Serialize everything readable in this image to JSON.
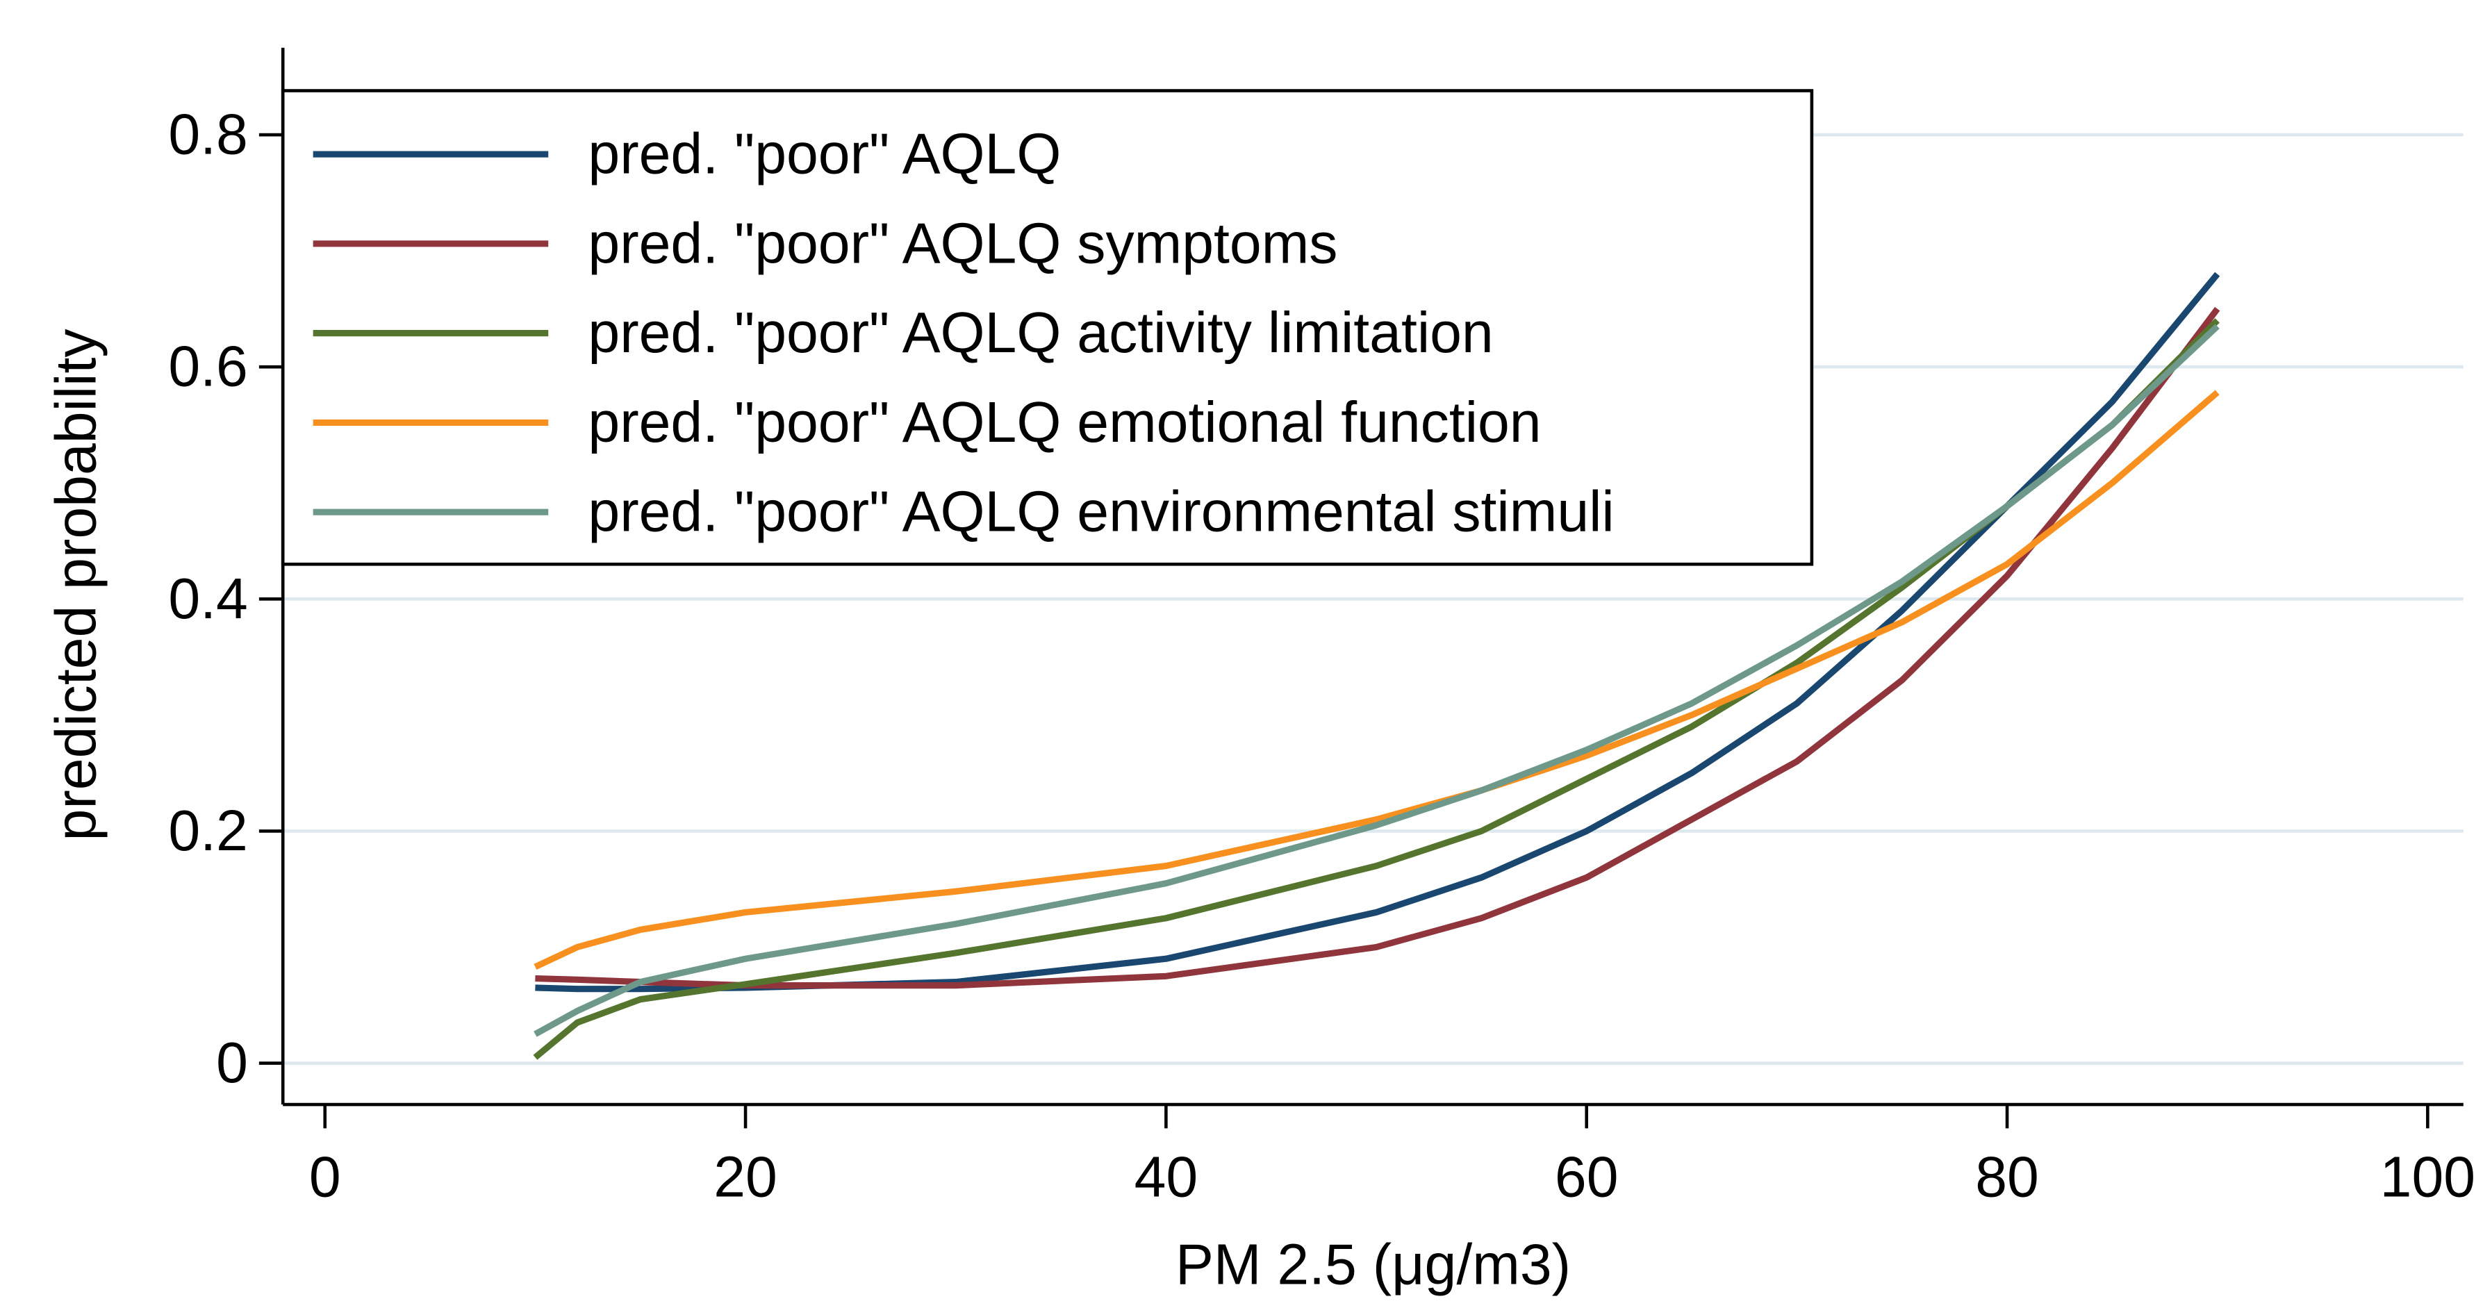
{
  "chart_data": {
    "type": "line",
    "x_label": "PM 2.5 (μg/m3)",
    "y_label": "predicted probability",
    "x": [
      10,
      12,
      15,
      20,
      30,
      40,
      50,
      55,
      60,
      65,
      70,
      75,
      80,
      85,
      90
    ],
    "series": [
      {
        "name": "pred. \"poor\" AQLQ",
        "color": "#1a476f",
        "values": [
          0.065,
          0.064,
          0.064,
          0.065,
          0.07,
          0.09,
          0.13,
          0.16,
          0.2,
          0.25,
          0.31,
          0.39,
          0.48,
          0.57,
          0.68
        ]
      },
      {
        "name": "pred. \"poor\" AQLQ symptoms",
        "color": "#90353b",
        "values": [
          0.073,
          0.072,
          0.07,
          0.067,
          0.067,
          0.075,
          0.1,
          0.125,
          0.16,
          0.21,
          0.26,
          0.33,
          0.42,
          0.53,
          0.65
        ]
      },
      {
        "name": "pred. \"poor\" AQLQ activity limitation",
        "color": "#55752f",
        "values": [
          0.005,
          0.035,
          0.055,
          0.068,
          0.095,
          0.125,
          0.17,
          0.2,
          0.245,
          0.29,
          0.345,
          0.41,
          0.48,
          0.55,
          0.64
        ]
      },
      {
        "name": "pred. \"poor\" AQLQ emotional function",
        "color": "#f7901e",
        "values": [
          0.083,
          0.1,
          0.115,
          0.13,
          0.148,
          0.17,
          0.21,
          0.235,
          0.265,
          0.3,
          0.34,
          0.38,
          0.43,
          0.5,
          0.578
        ]
      },
      {
        "name": "pred. \"poor\" AQLQ environmental stimuli",
        "color": "#6e998a",
        "values": [
          0.025,
          0.045,
          0.07,
          0.09,
          0.12,
          0.155,
          0.205,
          0.235,
          0.27,
          0.31,
          0.36,
          0.415,
          0.48,
          0.55,
          0.635
        ]
      }
    ],
    "xlim": [
      -2,
      101.7
    ],
    "ylim": [
      -0.0356,
      0.875
    ],
    "xticks": [
      0,
      20,
      40,
      60,
      80,
      100
    ],
    "yticks": [
      0,
      0.2,
      0.4,
      0.6,
      0.8
    ],
    "grid": true,
    "legend": "top-left"
  }
}
